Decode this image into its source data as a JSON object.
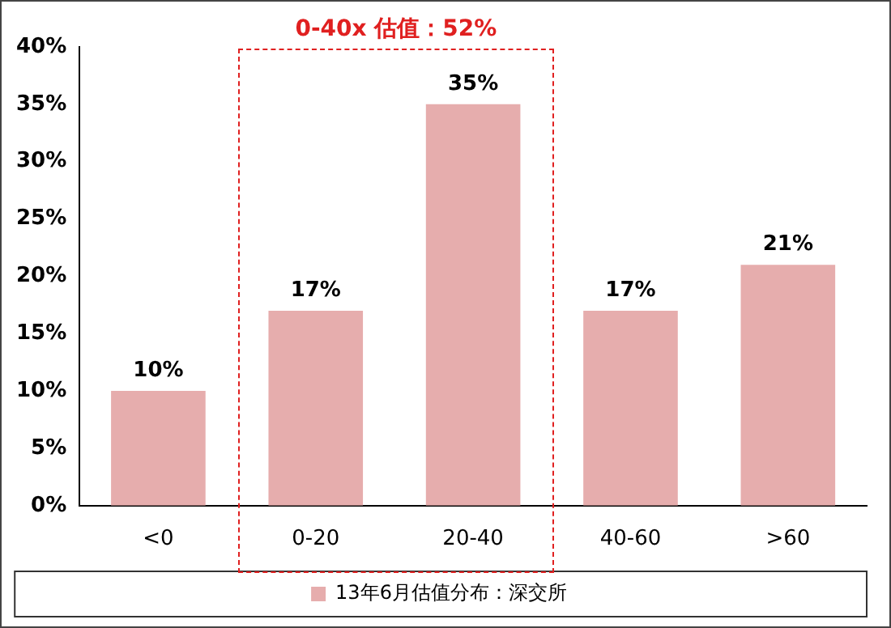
{
  "chart_data": {
    "type": "bar",
    "categories": [
      "<0",
      "0-20",
      "20-40",
      "40-60",
      ">60"
    ],
    "series": [
      {
        "name": "13年6月估值分布：深交所",
        "color": "#e6adad",
        "values": [
          10,
          17,
          35,
          17,
          21
        ]
      }
    ],
    "value_labels": [
      "10%",
      "17%",
      "35%",
      "17%",
      "21%"
    ],
    "ylim": [
      0,
      40
    ],
    "yticks": [
      {
        "value": 0,
        "label": "0%"
      },
      {
        "value": 5,
        "label": "5%"
      },
      {
        "value": 10,
        "label": "10%"
      },
      {
        "value": 15,
        "label": "15%"
      },
      {
        "value": 20,
        "label": "20%"
      },
      {
        "value": 25,
        "label": "25%"
      },
      {
        "value": 30,
        "label": "30%"
      },
      {
        "value": 35,
        "label": "35%"
      },
      {
        "value": 40,
        "label": "40%"
      }
    ],
    "annotations": [
      "0-40x 估值：52%"
    ],
    "grid": false,
    "legend": "bottom"
  }
}
